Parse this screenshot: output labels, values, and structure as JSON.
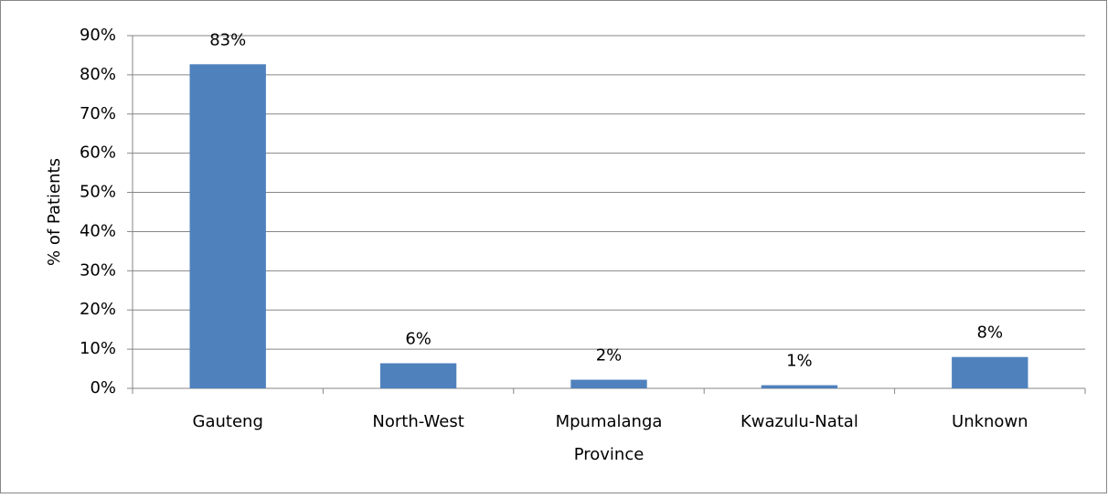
{
  "chart_data": {
    "type": "bar",
    "x_label": "Province",
    "y_label": "% of Patients",
    "categories": [
      "Gauteng",
      "North-West",
      "Mpumalanga",
      "Kwazulu-Natal",
      "Unknown"
    ],
    "values": [
      82.7,
      6.4,
      2.2,
      0.8,
      8.0
    ],
    "value_labels": [
      "83%",
      "6%",
      "2%",
      "1%",
      "8%"
    ],
    "color": "#4f81bd",
    "ylim": [
      0,
      90
    ],
    "yticks": [
      {
        "value": 0,
        "label": "0%"
      },
      {
        "value": 10,
        "label": "10%"
      },
      {
        "value": 20,
        "label": "20%"
      },
      {
        "value": 30,
        "label": "30%"
      },
      {
        "value": 40,
        "label": "40%"
      },
      {
        "value": 50,
        "label": "50%"
      },
      {
        "value": 60,
        "label": "60%"
      },
      {
        "value": 70,
        "label": "70%"
      },
      {
        "value": 80,
        "label": "80%"
      },
      {
        "value": 90,
        "label": "90%"
      }
    ],
    "grid": true
  }
}
